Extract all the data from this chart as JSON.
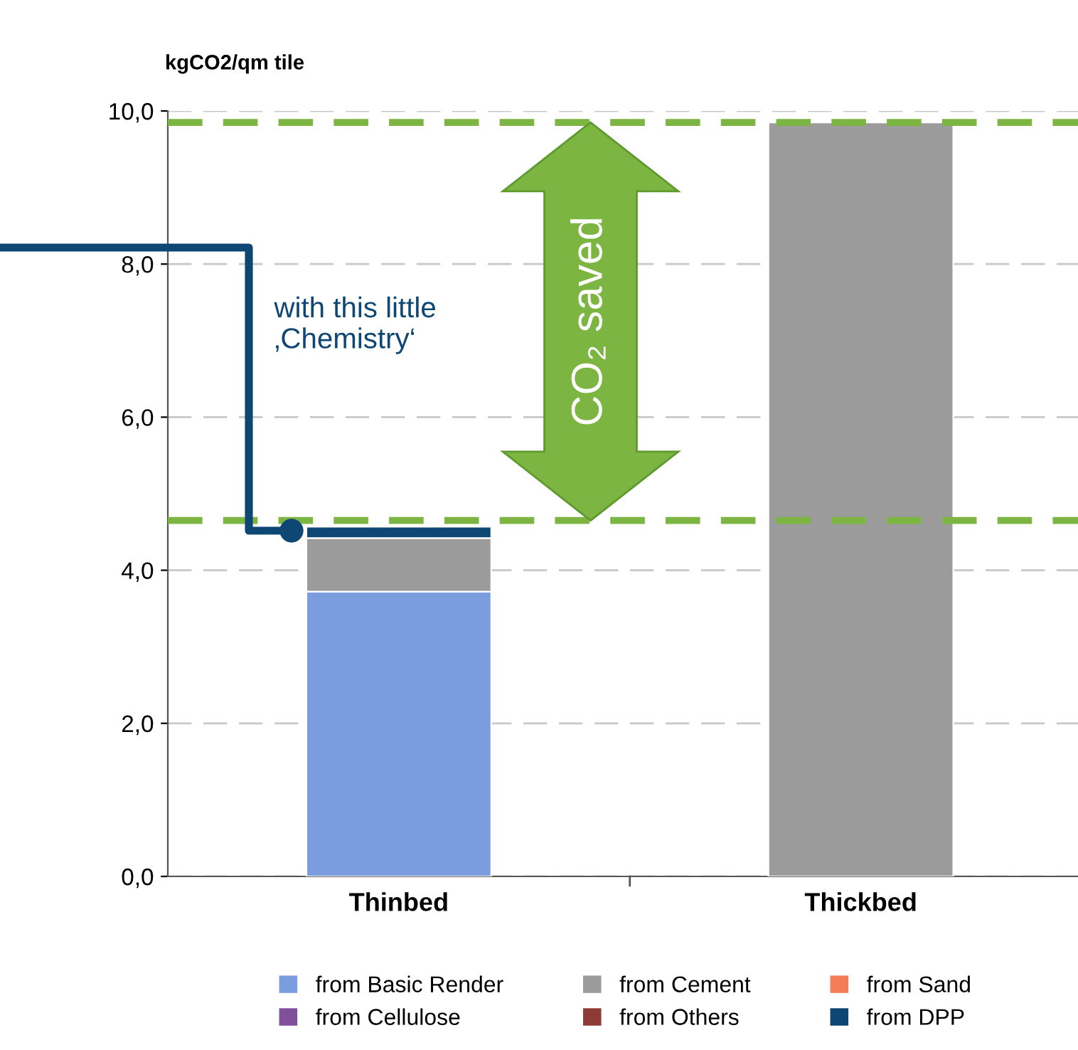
{
  "chart_data": {
    "type": "bar",
    "stacked": true,
    "ylabel": "kgCO2/qm tile",
    "categories": [
      "Thinbed",
      "Thickbed"
    ],
    "series": [
      {
        "name": "from Basic Render",
        "color": "#7b9de0",
        "values": [
          3.72,
          0
        ]
      },
      {
        "name": "from Cement",
        "color": "#9b9b9b",
        "values": [
          0.7,
          9.85
        ]
      },
      {
        "name": "from Sand",
        "color": "#f47c56",
        "values": [
          0,
          0
        ]
      },
      {
        "name": "from Cellulose",
        "color": "#7f4f9a",
        "values": [
          0,
          0
        ]
      },
      {
        "name": "from Others",
        "color": "#8e3a36",
        "values": [
          0,
          0
        ]
      },
      {
        "name": "from DPP",
        "color": "#0e4674",
        "values": [
          0.15,
          0
        ]
      }
    ],
    "ylim": [
      0,
      10
    ],
    "yticks": [
      {
        "value": 0,
        "label": "0,0"
      },
      {
        "value": 2,
        "label": "2,0"
      },
      {
        "value": 4,
        "label": "4,0"
      },
      {
        "value": 6,
        "label": "6,0"
      },
      {
        "value": 8,
        "label": "8,0"
      },
      {
        "value": 10,
        "label": "10,0"
      }
    ],
    "grid": "y",
    "legend": "bottom",
    "ref_lines": [
      {
        "axis": "y",
        "value": 9.85,
        "color": "#7db543",
        "line_style": "dashed"
      },
      {
        "axis": "y",
        "value": 4.65,
        "color": "#7db543",
        "line_style": "dashed"
      }
    ],
    "annotations": [
      "CO₂ saved",
      "with this little\n‚Chemistry‘"
    ]
  }
}
